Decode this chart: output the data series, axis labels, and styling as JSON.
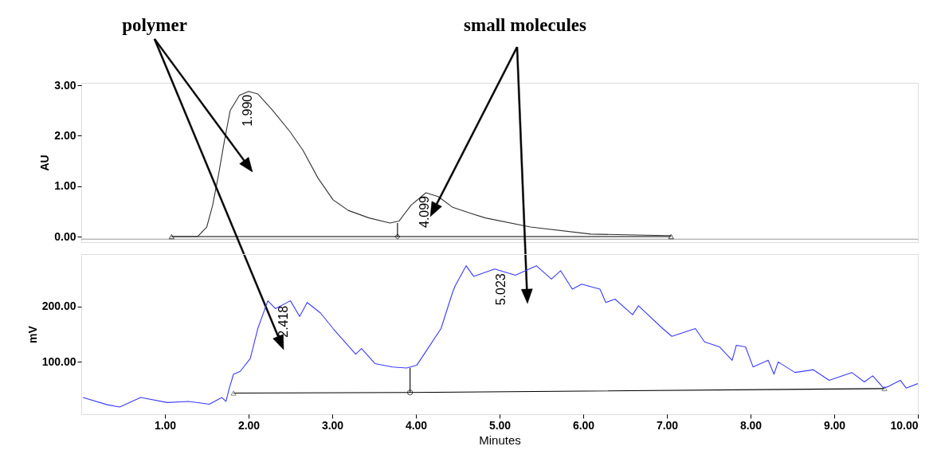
{
  "chart_data": [
    {
      "type": "line",
      "ylabel": "AU",
      "xlim": [
        0.0,
        10.0
      ],
      "ylim": [
        -0.11,
        3.05
      ],
      "yticks": [
        {
          "value": 0,
          "label": "0.00"
        },
        {
          "value": 1,
          "label": "1.00"
        },
        {
          "value": 2,
          "label": "2.00"
        },
        {
          "value": 3,
          "label": "3.00"
        }
      ],
      "tick_labels": "y",
      "grid": false,
      "annotations": [
        "polymer",
        "small molecules",
        {
          "text": "1.990",
          "x": 1.99,
          "y": 2.88
        },
        {
          "text": "4.099",
          "x": 4.1,
          "y": 0.87
        }
      ],
      "series": [
        {
          "color": "#999999",
          "x": [
            0.0,
            10.0
          ],
          "values": [
            -0.05,
            -0.05
          ]
        },
        {
          "color": "#000000",
          "x": [
            1.08,
            3.78,
            7.05
          ],
          "values": [
            0.0,
            0.0,
            0.0
          ]
        },
        {
          "color": "#000000",
          "x": [
            3.78,
            3.78
          ],
          "values": [
            0.0,
            0.27
          ]
        },
        {
          "type": "scatter",
          "color": "#000000",
          "marker": "triangle",
          "x": [
            1.08,
            7.05
          ],
          "values": [
            0.0,
            0.0
          ]
        },
        {
          "type": "scatter",
          "color": "#000000",
          "marker": "diamond",
          "x": [
            3.78
          ],
          "values": [
            0.0
          ]
        },
        {
          "color": "#333333",
          "x": [
            1.08,
            1.39,
            1.5,
            1.57,
            1.64,
            1.71,
            1.78,
            1.89,
            2.0,
            2.11,
            2.29,
            2.5,
            2.65,
            2.83,
            3.01,
            3.19,
            3.44,
            3.69,
            3.8,
            3.94,
            4.12,
            4.27,
            4.44,
            4.66,
            4.83,
            5.37,
            6.09,
            6.98,
            7.05
          ],
          "values": [
            0.0,
            0.0,
            0.19,
            0.62,
            1.22,
            1.89,
            2.5,
            2.8,
            2.88,
            2.83,
            2.5,
            2.07,
            1.71,
            1.16,
            0.73,
            0.52,
            0.37,
            0.27,
            0.31,
            0.62,
            0.87,
            0.79,
            0.58,
            0.46,
            0.37,
            0.19,
            0.05,
            0.02,
            0.02
          ]
        }
      ]
    },
    {
      "type": "line",
      "ylabel": "mV",
      "xlabel": "Minutes",
      "xlim": [
        0.0,
        10.0
      ],
      "ylim": [
        6,
        294
      ],
      "xticks": [
        {
          "value": 1,
          "label": "1.00"
        },
        {
          "value": 2,
          "label": "2.00"
        },
        {
          "value": 3,
          "label": "3.00"
        },
        {
          "value": 4,
          "label": "4.00"
        },
        {
          "value": 5,
          "label": "5.00"
        },
        {
          "value": 6,
          "label": "6.00"
        },
        {
          "value": 7,
          "label": "7.00"
        },
        {
          "value": 8,
          "label": "8.00"
        },
        {
          "value": 9,
          "label": "9.00"
        },
        {
          "value": 10,
          "label": "10.00"
        }
      ],
      "yticks": [
        {
          "value": 100,
          "label": "100.00"
        },
        {
          "value": 200,
          "label": "200.00"
        }
      ],
      "grid": false,
      "annotations": [
        {
          "text": "2.418",
          "x": 2.42,
          "y": 207
        },
        {
          "text": "5.023",
          "x": 5.02,
          "y": 265
        }
      ],
      "series": [
        {
          "color": "#000000",
          "x": [
            1.82,
            3.93,
            9.6
          ],
          "values": [
            44,
            45,
            52
          ]
        },
        {
          "color": "#000000",
          "x": [
            3.93,
            3.93
          ],
          "values": [
            45,
            89
          ]
        },
        {
          "type": "scatter",
          "color": "#555555",
          "marker": "triangle",
          "x": [
            1.82,
            9.6
          ],
          "values": [
            44,
            52
          ]
        },
        {
          "type": "scatter",
          "color": "#000000",
          "marker": "circle",
          "x": [
            3.93
          ],
          "values": [
            45
          ]
        },
        {
          "color": "#3a3aff",
          "x": [
            0.02,
            0.31,
            0.46,
            0.71,
            1.03,
            1.28,
            1.53,
            1.68,
            1.73,
            1.77,
            1.82,
            1.9,
            2.02,
            2.11,
            2.23,
            2.32,
            2.5,
            2.61,
            2.7,
            2.86,
            3.01,
            3.28,
            3.35,
            3.51,
            3.72,
            3.89,
            4.01,
            4.12,
            4.3,
            4.44,
            4.47,
            4.6,
            4.69,
            4.94,
            5.19,
            5.44,
            5.62,
            5.73,
            5.87,
            5.98,
            6.2,
            6.27,
            6.38,
            6.59,
            6.66,
            6.95,
            7.06,
            7.34,
            7.45,
            7.63,
            7.78,
            7.83,
            7.94,
            8.03,
            8.21,
            8.28,
            8.33,
            8.53,
            8.75,
            8.94,
            9.21,
            9.36,
            9.46,
            9.59,
            9.65,
            9.79,
            9.86,
            10.0
          ],
          "values": [
            36,
            23,
            19,
            36,
            27,
            29,
            24,
            36,
            29,
            53,
            78,
            83,
            106,
            160,
            210,
            196,
            210,
            182,
            207,
            188,
            160,
            114,
            124,
            97,
            91,
            89,
            94,
            119,
            160,
            226,
            237,
            273,
            254,
            267,
            256,
            273,
            249,
            264,
            231,
            240,
            231,
            207,
            213,
            185,
            201,
            160,
            146,
            160,
            136,
            127,
            103,
            130,
            127,
            91,
            103,
            78,
            100,
            81,
            86,
            67,
            81,
            64,
            75,
            53,
            56,
            67,
            53,
            61
          ]
        }
      ]
    }
  ]
}
